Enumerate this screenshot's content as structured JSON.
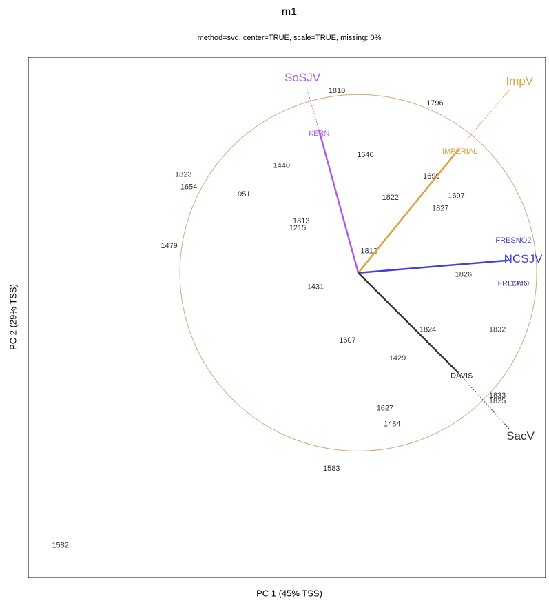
{
  "chart_data": {
    "type": "biplot",
    "title": "m1",
    "subtitle": "method=svd, center=TRUE, scale=TRUE, missing: 0%",
    "x_label": "PC 1 (45% TSS)",
    "y_label": "PC 2 (29% TSS)",
    "xlim": [
      -1.85,
      1.05
    ],
    "ylim": [
      -1.71,
      1.21
    ],
    "point_color": "#333333",
    "circle_color": "#d2a679",
    "points": [
      {
        "name": "1810",
        "x": -0.12,
        "y": 1.02
      },
      {
        "name": "1796",
        "x": 0.43,
        "y": 0.95
      },
      {
        "name": "1640",
        "x": 0.04,
        "y": 0.66
      },
      {
        "name": "1440",
        "x": -0.43,
        "y": 0.6
      },
      {
        "name": "1823",
        "x": -0.98,
        "y": 0.55
      },
      {
        "name": "1654",
        "x": -0.95,
        "y": 0.48
      },
      {
        "name": "951",
        "x": -0.64,
        "y": 0.44
      },
      {
        "name": "1690",
        "x": 0.41,
        "y": 0.54
      },
      {
        "name": "1697",
        "x": 0.55,
        "y": 0.43
      },
      {
        "name": "1822",
        "x": 0.18,
        "y": 0.42
      },
      {
        "name": "1827",
        "x": 0.46,
        "y": 0.36
      },
      {
        "name": "1813",
        "x": -0.32,
        "y": 0.29
      },
      {
        "name": "1215",
        "x": -0.34,
        "y": 0.25
      },
      {
        "name": "1479",
        "x": -1.06,
        "y": 0.15
      },
      {
        "name": "1812",
        "x": 0.06,
        "y": 0.12
      },
      {
        "name": "1826",
        "x": 0.59,
        "y": -0.01
      },
      {
        "name": "1376",
        "x": 0.9,
        "y": -0.06
      },
      {
        "name": "1431",
        "x": -0.24,
        "y": -0.08
      },
      {
        "name": "1832",
        "x": 0.78,
        "y": -0.32
      },
      {
        "name": "1824",
        "x": 0.39,
        "y": -0.32
      },
      {
        "name": "1607",
        "x": -0.06,
        "y": -0.38
      },
      {
        "name": "1429",
        "x": 0.22,
        "y": -0.48
      },
      {
        "name": "1833",
        "x": 0.78,
        "y": -0.69
      },
      {
        "name": "1825",
        "x": 0.78,
        "y": -0.72
      },
      {
        "name": "1627",
        "x": 0.15,
        "y": -0.76
      },
      {
        "name": "1484",
        "x": 0.19,
        "y": -0.85
      },
      {
        "name": "1583",
        "x": -0.15,
        "y": -1.1
      },
      {
        "name": "1582",
        "x": -1.67,
        "y": -1.53
      }
    ],
    "groups": [
      {
        "name": "SoSJV",
        "color": "#b05ce8",
        "x": -0.22,
        "y": 0.8,
        "tip_x": -0.29,
        "tip_y": 1.04,
        "environments": [
          {
            "name": "KERN",
            "x": -0.22,
            "y": 0.78
          }
        ]
      },
      {
        "name": "ImpV",
        "color": "#d9a13b",
        "x": 0.56,
        "y": 0.69,
        "tip_x": 0.85,
        "tip_y": 1.03,
        "environments": [
          {
            "name": "IMPERIAL",
            "x": 0.57,
            "y": 0.68
          }
        ]
      },
      {
        "name": "NCSJV",
        "color": "#4040e0",
        "x": 0.84,
        "y": 0.07,
        "tip_x": 0.84,
        "tip_y": 0.07,
        "environments": [
          {
            "name": "FRESNO2",
            "x": 0.87,
            "y": 0.18
          },
          {
            "name": "FRESNO",
            "x": 0.87,
            "y": -0.06
          }
        ]
      },
      {
        "name": "SacV",
        "color": "#333333",
        "x": 0.56,
        "y": -0.56,
        "tip_x": 0.85,
        "tip_y": -0.88,
        "environments": [
          {
            "name": "DAVIS",
            "x": 0.58,
            "y": -0.58
          }
        ]
      }
    ]
  }
}
